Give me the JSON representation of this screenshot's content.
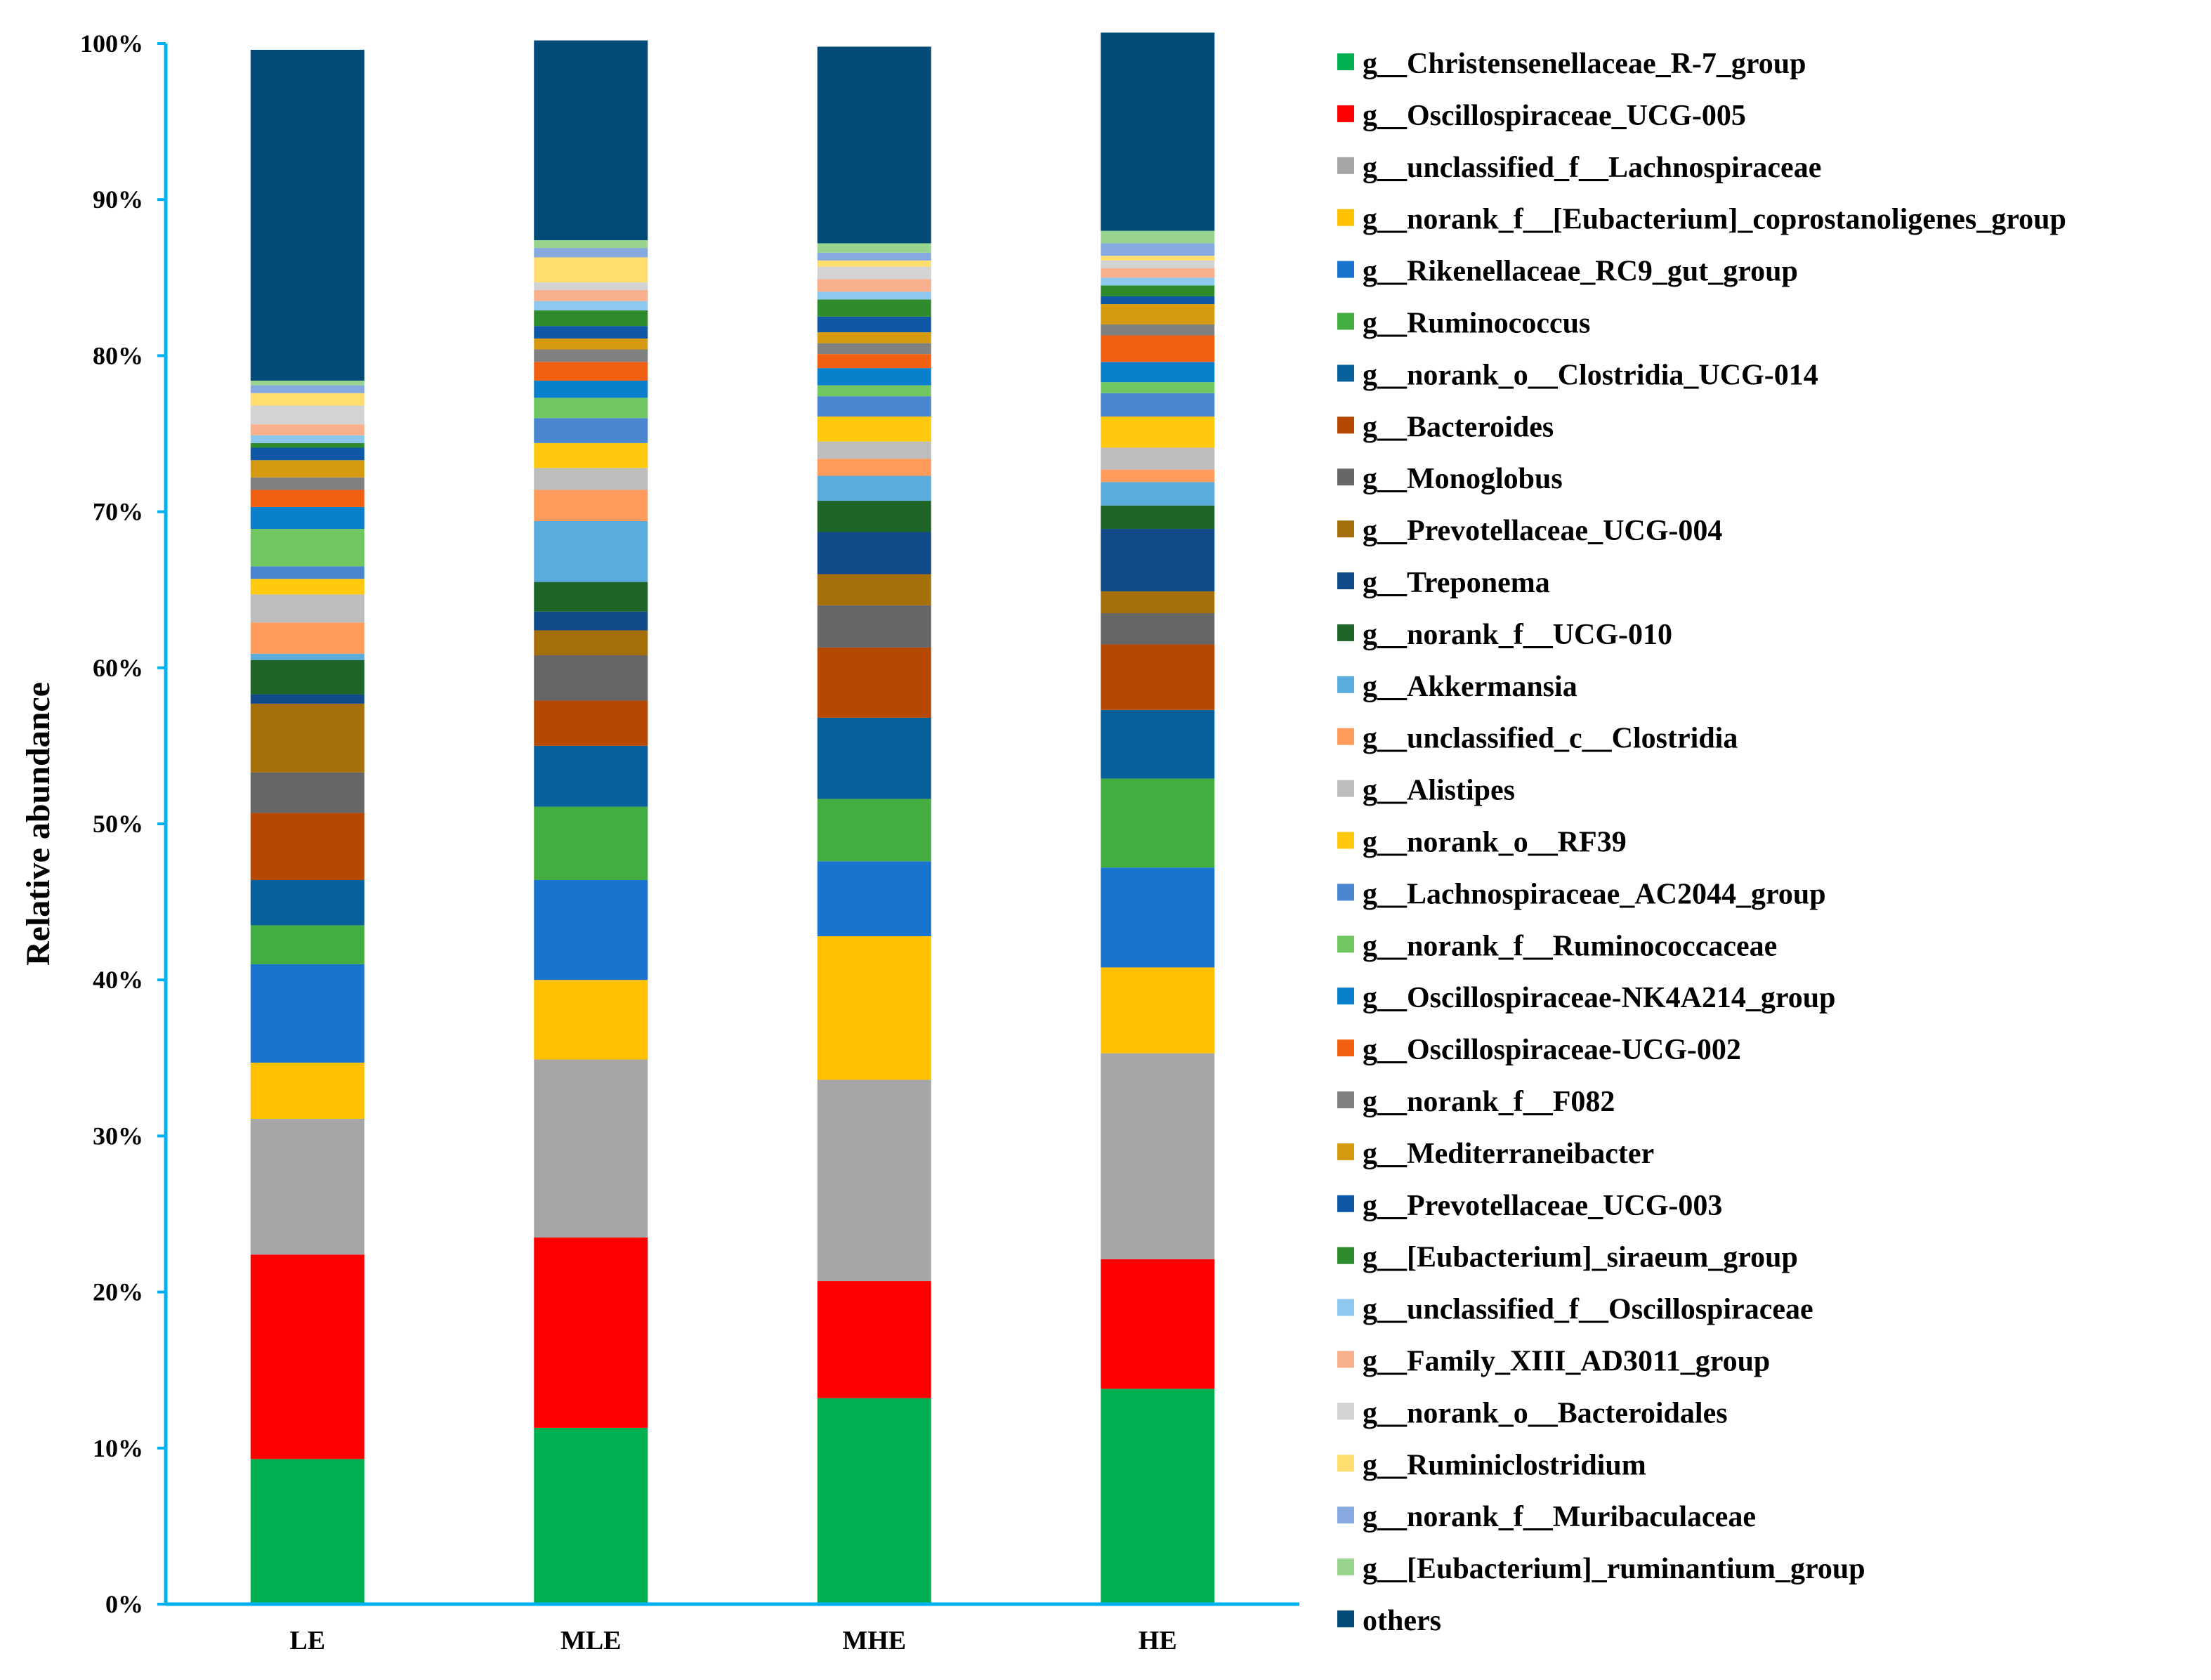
{
  "chart_data": {
    "type": "bar",
    "stacked": true,
    "title": "",
    "xlabel": "",
    "ylabel": "Relative abundance",
    "ylim": [
      0,
      100
    ],
    "yticks": [
      "0%",
      "10%",
      "20%",
      "30%",
      "40%",
      "50%",
      "60%",
      "70%",
      "80%",
      "90%",
      "100%"
    ],
    "categories": [
      "LE",
      "MLE",
      "MHE",
      "HE"
    ],
    "legend_position": "right",
    "series": [
      {
        "name": "g__Christensenellaceae_R-7_group",
        "color": "#00B050",
        "values": [
          9.3,
          11.3,
          13.2,
          13.8
        ]
      },
      {
        "name": "g__Oscillospiraceae_UCG-005",
        "color": "#FF0000",
        "values": [
          13.1,
          12.2,
          7.5,
          8.3
        ]
      },
      {
        "name": "g__unclassified_f__Lachnospiraceae",
        "color": "#A6A6A6",
        "values": [
          8.7,
          11.4,
          12.9,
          13.2
        ]
      },
      {
        "name": "g__norank_f__[Eubacterium]_coprostanoligenes_group",
        "color": "#FFC000",
        "values": [
          3.6,
          5.1,
          9.2,
          5.5
        ]
      },
      {
        "name": "g__Rikenellaceae_RC9_gut_group",
        "color": "#1874CD",
        "values": [
          6.3,
          6.4,
          4.8,
          6.4
        ]
      },
      {
        "name": "g__Ruminococcus",
        "color": "#43AE3F",
        "values": [
          2.5,
          4.7,
          4.0,
          5.7
        ]
      },
      {
        "name": "g__norank_o__Clostridia_UCG-014",
        "color": "#08609B",
        "values": [
          2.9,
          3.9,
          5.2,
          4.4
        ]
      },
      {
        "name": "g__Bacteroides",
        "color": "#B64902",
        "values": [
          4.3,
          2.9,
          4.5,
          4.2
        ]
      },
      {
        "name": "g__Monoglobus",
        "color": "#666666",
        "values": [
          2.6,
          2.9,
          2.7,
          2.0
        ]
      },
      {
        "name": "g__Prevotellaceae_UCG-004",
        "color": "#A5700A",
        "values": [
          4.4,
          1.6,
          2.0,
          1.4
        ]
      },
      {
        "name": "g__Treponema",
        "color": "#124A8A",
        "values": [
          0.6,
          1.2,
          2.7,
          4.0
        ]
      },
      {
        "name": "g__norank_f__UCG-010",
        "color": "#206528",
        "values": [
          2.2,
          1.9,
          2.0,
          1.5
        ]
      },
      {
        "name": "g__Akkermansia",
        "color": "#5AACDD",
        "values": [
          0.4,
          3.9,
          1.6,
          1.5
        ]
      },
      {
        "name": "g__unclassified_c__Clostridia",
        "color": "#FF9B5C",
        "values": [
          2.0,
          2.0,
          1.1,
          0.8
        ]
      },
      {
        "name": "g__Alistipes",
        "color": "#BDBDBD",
        "values": [
          1.8,
          1.4,
          1.1,
          1.4
        ]
      },
      {
        "name": "g__norank_o__RF39",
        "color": "#FFC90E",
        "values": [
          1.0,
          1.6,
          1.6,
          2.0
        ]
      },
      {
        "name": "g__Lachnospiraceae_AC2044_group",
        "color": "#4A86D0",
        "values": [
          0.8,
          1.6,
          1.3,
          1.5
        ]
      },
      {
        "name": "g__norank_f__Ruminococcaceae",
        "color": "#70C65F",
        "values": [
          2.4,
          1.3,
          0.7,
          0.7
        ]
      },
      {
        "name": "g__Oscillospiraceae-NK4A214_group",
        "color": "#0A7FCC",
        "values": [
          1.4,
          1.1,
          1.1,
          1.3
        ]
      },
      {
        "name": "g__Oscillospiraceae-UCG-002",
        "color": "#F06010",
        "values": [
          1.1,
          1.2,
          0.9,
          1.7
        ]
      },
      {
        "name": "g__norank_f__F082",
        "color": "#808080",
        "values": [
          0.8,
          0.8,
          0.7,
          0.7
        ]
      },
      {
        "name": "g__Mediterraneibacter",
        "color": "#D69A10",
        "values": [
          1.1,
          0.7,
          0.7,
          1.3
        ]
      },
      {
        "name": "g__Prevotellaceae_UCG-003",
        "color": "#0F58A8",
        "values": [
          0.8,
          0.8,
          1.0,
          0.5
        ]
      },
      {
        "name": "g__[Eubacterium]_siraeum_group",
        "color": "#2E8B2E",
        "values": [
          0.3,
          1.0,
          1.1,
          0.7
        ]
      },
      {
        "name": "g__unclassified_f__Oscillospiraceae",
        "color": "#8FC8EE",
        "values": [
          0.5,
          0.6,
          0.5,
          0.5
        ]
      },
      {
        "name": "g__Family_XIII_AD3011_group",
        "color": "#F8B08C",
        "values": [
          0.7,
          0.7,
          0.8,
          0.6
        ]
      },
      {
        "name": "g__norank_o__Bacteroidales",
        "color": "#D3D3D3",
        "values": [
          1.2,
          0.5,
          0.8,
          0.5
        ]
      },
      {
        "name": "g__Ruminiclostridium",
        "color": "#FFDD6E",
        "values": [
          0.8,
          1.6,
          0.4,
          0.3
        ]
      },
      {
        "name": "g__norank_f__Muribaculaceae",
        "color": "#86A9E0",
        "values": [
          0.5,
          0.6,
          0.5,
          0.8
        ]
      },
      {
        "name": "g__[Eubacterium]_ruminantium_group",
        "color": "#98D48E",
        "values": [
          0.3,
          0.5,
          0.6,
          0.8
        ]
      },
      {
        "name": "others",
        "color": "#024B78",
        "values": [
          21.2,
          12.8,
          12.6,
          12.7
        ]
      }
    ]
  }
}
